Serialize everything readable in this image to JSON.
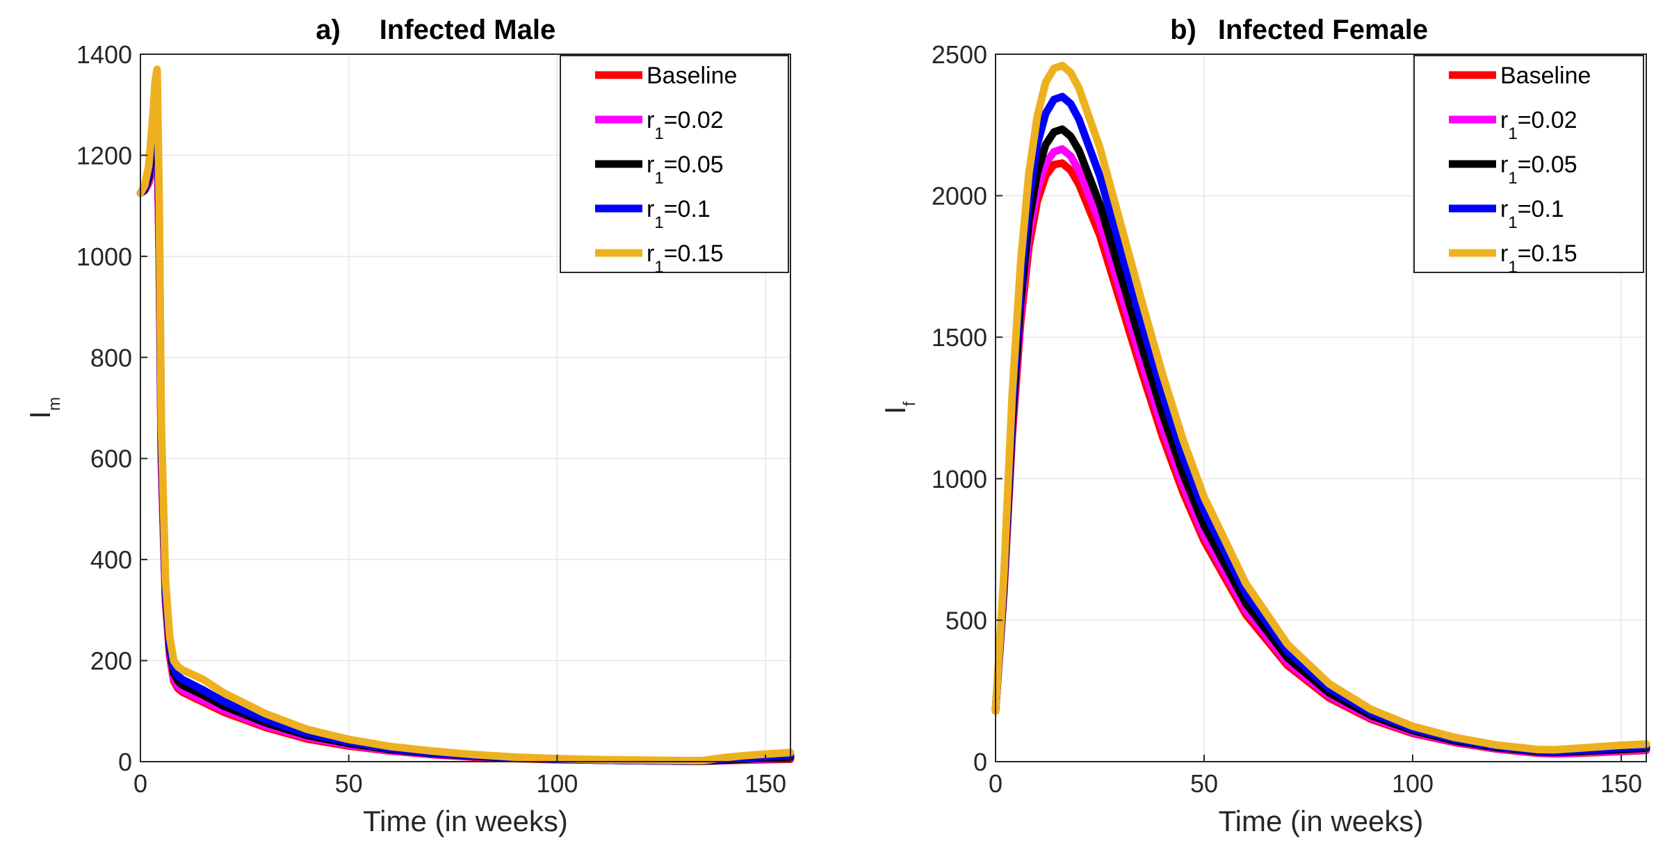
{
  "chart_data": [
    {
      "type": "line",
      "panel_label": "a)",
      "title": "Infected Male",
      "xlabel": "Time (in weeks)",
      "ylabel": "I",
      "ylabel_sub": "m",
      "xlim": [
        0,
        156
      ],
      "ylim": [
        0,
        1400
      ],
      "xticks": [
        0,
        50,
        100,
        150
      ],
      "yticks": [
        0,
        200,
        400,
        600,
        800,
        1000,
        1200,
        1400
      ],
      "grid": true,
      "legend_position": "top-right",
      "series": [
        {
          "name": "Baseline",
          "label_prefix": "",
          "label_sub": "",
          "label_value": "Baseline",
          "color": "#ff0000",
          "x": [
            0,
            1,
            2,
            3,
            3.5,
            4,
            4.5,
            5,
            6,
            7,
            8,
            9,
            10,
            15,
            20,
            30,
            40,
            50,
            60,
            70,
            80,
            90,
            100,
            110,
            120,
            130,
            135,
            140,
            145,
            150,
            156
          ],
          "y": [
            1125,
            1130,
            1145,
            1185,
            1230,
            1250,
            1000,
            600,
            320,
            210,
            160,
            145,
            138,
            118,
            98,
            68,
            45,
            31,
            21,
            14,
            9,
            6,
            4,
            3,
            2,
            1,
            1,
            2,
            3,
            4,
            5
          ]
        },
        {
          "name": "r1=0.02",
          "label_prefix": "r",
          "label_sub": "1",
          "label_value": "=0.02",
          "color": "#ff00ff",
          "x": [
            0,
            1,
            2,
            3,
            3.5,
            4,
            4.5,
            5,
            6,
            7,
            8,
            9,
            10,
            15,
            20,
            30,
            40,
            50,
            60,
            70,
            80,
            90,
            100,
            110,
            120,
            130,
            135,
            140,
            145,
            150,
            156
          ],
          "y": [
            1125,
            1130,
            1148,
            1200,
            1250,
            1270,
            1020,
            610,
            325,
            215,
            165,
            150,
            142,
            122,
            102,
            71,
            48,
            33,
            22,
            15,
            10,
            7,
            5,
            3,
            2,
            1,
            1,
            2,
            4,
            5,
            6
          ]
        },
        {
          "name": "r1=0.05",
          "label_prefix": "r",
          "label_sub": "1",
          "label_value": "=0.05",
          "color": "#000000",
          "x": [
            0,
            1,
            2,
            3,
            3.5,
            4,
            4.5,
            5,
            6,
            7,
            8,
            9,
            10,
            15,
            20,
            30,
            40,
            50,
            60,
            70,
            80,
            90,
            100,
            110,
            120,
            130,
            135,
            140,
            145,
            150,
            156
          ],
          "y": [
            1125,
            1132,
            1155,
            1220,
            1280,
            1300,
            1050,
            630,
            335,
            225,
            175,
            160,
            152,
            132,
            110,
            77,
            52,
            36,
            24,
            16,
            11,
            7,
            5,
            3,
            2,
            1,
            1,
            3,
            5,
            7,
            9
          ]
        },
        {
          "name": "r1=0.1",
          "label_prefix": "r",
          "label_sub": "1",
          "label_value": "=0.1",
          "color": "#0000ff",
          "x": [
            0,
            1,
            2,
            3,
            3.5,
            4,
            4.5,
            5,
            6,
            7,
            8,
            9,
            10,
            15,
            20,
            30,
            40,
            50,
            60,
            70,
            80,
            90,
            100,
            110,
            120,
            130,
            135,
            140,
            145,
            150,
            156
          ],
          "y": [
            1125,
            1135,
            1165,
            1250,
            1310,
            1335,
            1080,
            650,
            345,
            235,
            185,
            170,
            163,
            142,
            119,
            83,
            56,
            39,
            26,
            17,
            12,
            8,
            5,
            3,
            2,
            1,
            2,
            5,
            8,
            10,
            13
          ]
        },
        {
          "name": "r1=0.15",
          "label_prefix": "r",
          "label_sub": "1",
          "label_value": "=0.15",
          "color": "#edb120",
          "x": [
            0,
            1,
            2,
            3,
            3.5,
            4,
            4.5,
            5,
            6,
            7,
            8,
            9,
            10,
            15,
            20,
            30,
            40,
            50,
            60,
            70,
            80,
            90,
            100,
            110,
            120,
            130,
            135,
            140,
            145,
            150,
            156
          ],
          "y": [
            1125,
            1140,
            1180,
            1280,
            1345,
            1370,
            1110,
            670,
            360,
            248,
            200,
            188,
            182,
            163,
            136,
            95,
            64,
            44,
            30,
            21,
            14,
            9,
            6,
            4,
            3,
            2,
            2,
            8,
            12,
            15,
            18
          ]
        }
      ]
    },
    {
      "type": "line",
      "panel_label": "b)",
      "title": "Infected Female",
      "xlabel": "Time (in weeks)",
      "ylabel": "I",
      "ylabel_sub": "f",
      "xlim": [
        0,
        156
      ],
      "ylim": [
        0,
        2500
      ],
      "xticks": [
        0,
        50,
        100,
        150
      ],
      "yticks": [
        0,
        500,
        1000,
        1500,
        2000,
        2500
      ],
      "grid": true,
      "legend_position": "top-right",
      "series": [
        {
          "name": "Baseline",
          "label_prefix": "",
          "label_sub": "",
          "label_value": "Baseline",
          "color": "#ff0000",
          "x": [
            0,
            2,
            4,
            6,
            8,
            10,
            12,
            14,
            16,
            18,
            20,
            25,
            30,
            35,
            40,
            45,
            50,
            60,
            70,
            80,
            90,
            100,
            110,
            120,
            130,
            134,
            140,
            150,
            156
          ],
          "y": [
            180,
            600,
            1150,
            1550,
            1820,
            1980,
            2070,
            2110,
            2115,
            2090,
            2040,
            1860,
            1620,
            1380,
            1150,
            950,
            780,
            520,
            340,
            225,
            150,
            100,
            68,
            45,
            30,
            28,
            30,
            36,
            40
          ]
        },
        {
          "name": "r1=0.02",
          "label_prefix": "r",
          "label_sub": "1",
          "label_value": "=0.02",
          "color": "#ff00ff",
          "x": [
            0,
            2,
            4,
            6,
            8,
            10,
            12,
            14,
            16,
            18,
            20,
            25,
            30,
            35,
            40,
            45,
            50,
            60,
            70,
            80,
            90,
            100,
            110,
            120,
            130,
            134,
            140,
            150,
            156
          ],
          "y": [
            180,
            610,
            1170,
            1580,
            1860,
            2020,
            2115,
            2155,
            2165,
            2140,
            2090,
            1905,
            1660,
            1415,
            1180,
            975,
            800,
            535,
            350,
            232,
            155,
            104,
            70,
            47,
            32,
            30,
            32,
            38,
            42
          ]
        },
        {
          "name": "r1=0.05",
          "label_prefix": "r",
          "label_sub": "1",
          "label_value": "=0.05",
          "color": "#000000",
          "x": [
            0,
            2,
            4,
            6,
            8,
            10,
            12,
            14,
            16,
            18,
            20,
            25,
            30,
            35,
            40,
            45,
            50,
            60,
            70,
            80,
            90,
            100,
            110,
            120,
            130,
            134,
            140,
            150,
            156
          ],
          "y": [
            180,
            620,
            1200,
            1620,
            1910,
            2080,
            2180,
            2225,
            2235,
            2210,
            2160,
            1970,
            1720,
            1470,
            1230,
            1015,
            835,
            560,
            367,
            243,
            163,
            110,
            74,
            50,
            35,
            33,
            36,
            43,
            48
          ]
        },
        {
          "name": "r1=0.1",
          "label_prefix": "r",
          "label_sub": "1",
          "label_value": "=0.1",
          "color": "#0000ff",
          "x": [
            0,
            2,
            4,
            6,
            8,
            10,
            12,
            14,
            16,
            18,
            20,
            25,
            30,
            35,
            40,
            45,
            50,
            60,
            70,
            80,
            90,
            100,
            110,
            120,
            130,
            134,
            140,
            150,
            156
          ],
          "y": [
            180,
            640,
            1250,
            1690,
            1990,
            2180,
            2290,
            2340,
            2350,
            2325,
            2270,
            2070,
            1810,
            1550,
            1300,
            1075,
            885,
            595,
            390,
            258,
            173,
            116,
            79,
            54,
            38,
            36,
            40,
            48,
            54
          ]
        },
        {
          "name": "r1=0.15",
          "label_prefix": "r",
          "label_sub": "1",
          "label_value": "=0.15",
          "color": "#edb120",
          "x": [
            0,
            2,
            4,
            6,
            8,
            10,
            12,
            14,
            16,
            18,
            20,
            25,
            30,
            35,
            40,
            45,
            50,
            60,
            70,
            80,
            90,
            100,
            110,
            120,
            130,
            134,
            140,
            150,
            156
          ],
          "y": [
            180,
            660,
            1300,
            1760,
            2080,
            2280,
            2400,
            2450,
            2460,
            2435,
            2380,
            2170,
            1900,
            1630,
            1370,
            1135,
            935,
            630,
            415,
            275,
            185,
            125,
            86,
            59,
            43,
            42,
            48,
            58,
            62
          ]
        }
      ]
    }
  ]
}
